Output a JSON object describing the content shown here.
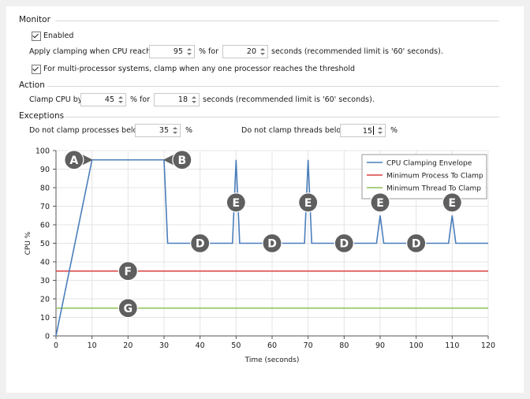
{
  "monitor": {
    "title": "Monitor",
    "enabled_label": "Enabled",
    "apply_label": "Apply clamping when CPU reaches",
    "cpu_value": "95",
    "pct_for": "% for",
    "seconds_value": "20",
    "seconds_note": "seconds (recommended limit is '60' seconds).",
    "multi_label": "For multi-processor systems, clamp when any one processor reaches the threshold"
  },
  "action": {
    "title": "Action",
    "clamp_label": "Clamp CPU by",
    "clamp_value": "45",
    "pct_for": "% for",
    "seconds_value": "18",
    "seconds_note": "seconds (recommended limit is '60' seconds)."
  },
  "exceptions": {
    "title": "Exceptions",
    "proc_label": "Do not clamp processes below",
    "proc_value": "35",
    "proc_unit": "%",
    "thread_label": "Do not clamp threads below",
    "thread_value": "15",
    "thread_unit": "%"
  },
  "chart_data": {
    "type": "line",
    "xlabel": "Time (seconds)",
    "ylabel": "CPU %",
    "xlim": [
      0,
      120
    ],
    "ylim": [
      0,
      100
    ],
    "xticks": [
      0,
      10,
      20,
      30,
      40,
      50,
      60,
      70,
      80,
      90,
      100,
      110,
      120
    ],
    "yticks": [
      0,
      10,
      20,
      30,
      40,
      50,
      60,
      70,
      80,
      90,
      100
    ],
    "grid": true,
    "legend_position": "top-right",
    "series": [
      {
        "name": "CPU Clamping Envelope",
        "color": "#4a7ebb",
        "x": [
          0,
          10,
          30,
          31,
          49,
          50,
          51,
          69,
          70,
          71,
          89,
          90,
          91,
          109,
          110,
          111,
          120
        ],
        "y": [
          0,
          95,
          95,
          50,
          50,
          95,
          50,
          50,
          95,
          50,
          50,
          65,
          50,
          50,
          65,
          50,
          50
        ]
      },
      {
        "name": "Minimum Process To Clamp",
        "color": "#d94040",
        "x": [
          0,
          120
        ],
        "y": [
          35,
          35
        ]
      },
      {
        "name": "Minimum Thread To Clamp",
        "color": "#8cc152",
        "x": [
          0,
          120
        ],
        "y": [
          15,
          15
        ]
      }
    ],
    "annotations": [
      {
        "label": "A",
        "x": 5,
        "y": 95,
        "pointer": "right"
      },
      {
        "label": "B",
        "x": 35,
        "y": 95,
        "pointer": "left"
      },
      {
        "label": "D",
        "x": 40,
        "y": 50
      },
      {
        "label": "D",
        "x": 60,
        "y": 50
      },
      {
        "label": "D",
        "x": 80,
        "y": 50
      },
      {
        "label": "D",
        "x": 100,
        "y": 50
      },
      {
        "label": "E",
        "x": 50,
        "y": 72
      },
      {
        "label": "E",
        "x": 70,
        "y": 72
      },
      {
        "label": "E",
        "x": 90,
        "y": 72
      },
      {
        "label": "E",
        "x": 110,
        "y": 72
      },
      {
        "label": "F",
        "x": 20,
        "y": 35
      },
      {
        "label": "G",
        "x": 20,
        "y": 15
      }
    ]
  }
}
